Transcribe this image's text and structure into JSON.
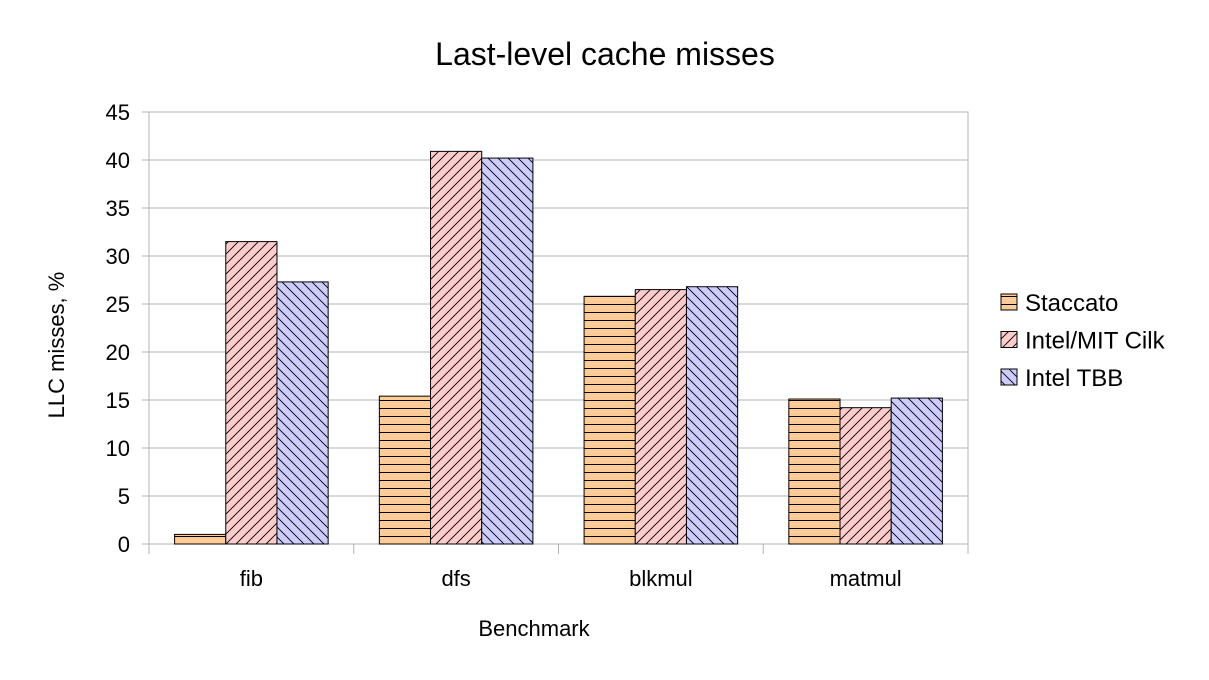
{
  "chart_data": {
    "type": "bar",
    "title": "Last-level cache misses",
    "xlabel": "Benchmark",
    "ylabel": "LLC misses, %",
    "categories": [
      "fib",
      "dfs",
      "blkmul",
      "matmul"
    ],
    "ylim": [
      0,
      45
    ],
    "yticks": [
      0,
      5,
      10,
      15,
      20,
      25,
      30,
      35,
      40,
      45
    ],
    "grid": true,
    "legend_position": "right",
    "series": [
      {
        "name": "Staccato",
        "values": [
          1.0,
          15.4,
          25.8,
          15.1
        ],
        "color": "#ffcc99",
        "pattern": "horizontal"
      },
      {
        "name": "Intel/MIT Cilk",
        "values": [
          31.5,
          40.9,
          26.5,
          14.2
        ],
        "color": "#ffcccc",
        "pattern": "diagonal-up"
      },
      {
        "name": "Intel TBB",
        "values": [
          27.3,
          40.2,
          26.8,
          15.2
        ],
        "color": "#ccccff",
        "pattern": "diagonal-down"
      }
    ]
  }
}
